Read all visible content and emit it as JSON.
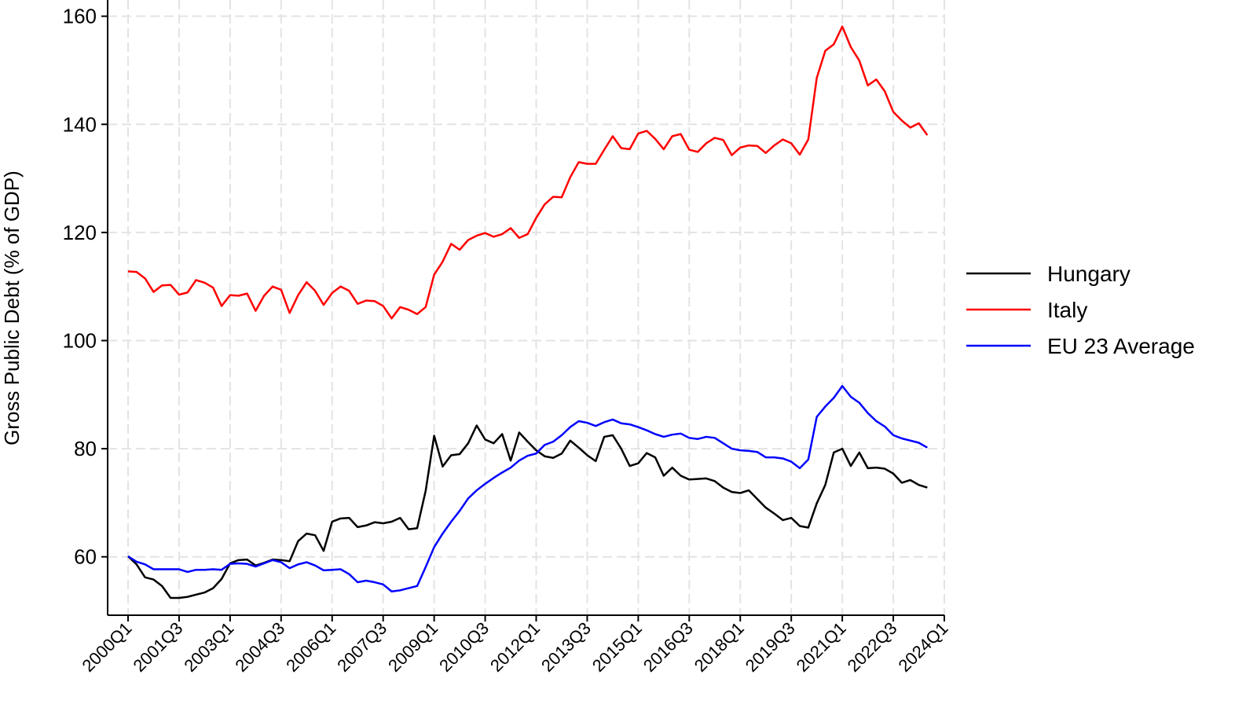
{
  "chart_data": {
    "type": "line",
    "y_label": "Gross Public Debt (% of GDP)",
    "categories": [
      "2000Q1",
      null,
      null,
      null,
      null,
      null,
      "2001Q3",
      null,
      null,
      null,
      null,
      null,
      "2003Q1",
      null,
      null,
      null,
      null,
      null,
      "2004Q3",
      null,
      null,
      null,
      null,
      null,
      "2006Q1",
      null,
      null,
      null,
      null,
      null,
      "2007Q3",
      null,
      null,
      null,
      null,
      null,
      "2009Q1",
      null,
      null,
      null,
      null,
      null,
      "2010Q3",
      null,
      null,
      null,
      null,
      null,
      "2012Q1",
      null,
      null,
      null,
      null,
      null,
      "2013Q3",
      null,
      null,
      null,
      null,
      null,
      "2015Q1",
      null,
      null,
      null,
      null,
      null,
      "2016Q3",
      null,
      null,
      null,
      null,
      null,
      "2018Q1",
      null,
      null,
      null,
      null,
      null,
      "2019Q3",
      null,
      null,
      null,
      null,
      null,
      "2021Q1",
      null,
      null,
      null,
      null,
      null,
      "2022Q3",
      null,
      null,
      null,
      null,
      null,
      "2024Q1"
    ],
    "series": [
      {
        "name": "Hungary",
        "color": "#000000",
        "values": [
          60.1,
          58.6,
          56.2,
          55.8,
          54.6,
          52.4,
          52.4,
          52.6,
          53,
          53.4,
          54.2,
          55.9,
          58.8,
          59.4,
          59.5,
          58.4,
          58.9,
          59.5,
          59.4,
          59.2,
          62.9,
          64.3,
          64,
          61.1,
          66.5,
          67.1,
          67.2,
          65.5,
          65.8,
          66.4,
          66.2,
          66.5,
          67.2,
          65.1,
          65.3,
          72.2,
          82.4,
          76.7,
          78.8,
          79,
          81,
          84.3,
          81.7,
          81,
          82.7,
          77.8,
          83,
          81.3,
          79.7,
          78.6,
          78.3,
          79.1,
          81.5,
          80.2,
          78.8,
          77.7,
          82.2,
          82.5,
          80,
          76.8,
          77.3,
          79.2,
          78.4,
          75,
          76.5,
          75,
          74.3,
          74.4,
          74.5,
          74,
          72.8,
          72,
          71.8,
          72.3,
          70.7,
          69.1,
          68,
          66.8,
          67.2,
          65.7,
          65.4,
          69.9,
          73.3,
          79.3,
          80,
          76.8,
          79.3,
          76.4,
          76.5,
          76.3,
          75.4,
          73.7,
          74.2,
          73.3,
          72.8,
          null,
          null
        ]
      },
      {
        "name": "Italy",
        "color": "#ff0000",
        "values": [
          112.8,
          112.7,
          111.5,
          109,
          110.2,
          110.3,
          108.5,
          108.9,
          111.2,
          110.7,
          109.8,
          106.4,
          108.4,
          108.3,
          108.7,
          105.5,
          108.3,
          110,
          109.4,
          105.1,
          108.4,
          110.8,
          109.2,
          106.6,
          108.8,
          110,
          109.2,
          106.8,
          107.4,
          107.3,
          106.4,
          104.1,
          106.2,
          105.7,
          104.9,
          106.2,
          112.2,
          114.6,
          117.9,
          116.8,
          118.6,
          119.4,
          119.9,
          119.2,
          119.7,
          120.8,
          119,
          119.7,
          122.7,
          125.2,
          126.6,
          126.5,
          130.2,
          133,
          132.7,
          132.7,
          135.3,
          137.8,
          135.6,
          135.4,
          138.3,
          138.8,
          137.3,
          135.4,
          137.8,
          138.2,
          135.3,
          134.9,
          136.5,
          137.5,
          137.1,
          134.3,
          135.7,
          136.1,
          136,
          134.7,
          136.1,
          137.2,
          136.5,
          134.4,
          137.2,
          148.6,
          153.6,
          154.8,
          158.1,
          154.3,
          151.8,
          147.2,
          148.3,
          146.1,
          142.3,
          140.7,
          139.4,
          140.2,
          138,
          null,
          null
        ]
      },
      {
        "name": "EU 23 Average",
        "color": "#0000ff",
        "values": [
          60.1,
          59.1,
          58.6,
          57.7,
          57.7,
          57.7,
          57.7,
          57.2,
          57.6,
          57.6,
          57.7,
          57.6,
          58.7,
          58.8,
          58.7,
          58.2,
          58.8,
          59.4,
          59,
          57.9,
          58.6,
          59,
          58.4,
          57.5,
          57.6,
          57.7,
          56.8,
          55.3,
          55.6,
          55.3,
          54.9,
          53.6,
          53.8,
          54.2,
          54.6,
          58.1,
          61.8,
          64.3,
          66.5,
          68.5,
          70.8,
          72.3,
          73.5,
          74.6,
          75.6,
          76.5,
          77.8,
          78.7,
          79.1,
          80.7,
          81.3,
          82.5,
          84,
          85.1,
          84.8,
          84.2,
          84.9,
          85.4,
          84.7,
          84.5,
          84,
          83.4,
          82.7,
          82.2,
          82.6,
          82.8,
          82,
          81.8,
          82.2,
          82,
          81,
          80,
          79.7,
          79.6,
          79.4,
          78.4,
          78.4,
          78.2,
          77.6,
          76.4,
          78,
          85.9,
          87.8,
          89.4,
          91.6,
          89.6,
          88.5,
          86.6,
          85.1,
          84.1,
          82.5,
          81.9,
          81.5,
          81.1,
          80.2,
          null,
          null
        ]
      }
    ],
    "ylim": [
      49.2,
      163
    ],
    "yticks": [
      60,
      80,
      100,
      120,
      140,
      160
    ],
    "grid": true,
    "legend": "right"
  }
}
